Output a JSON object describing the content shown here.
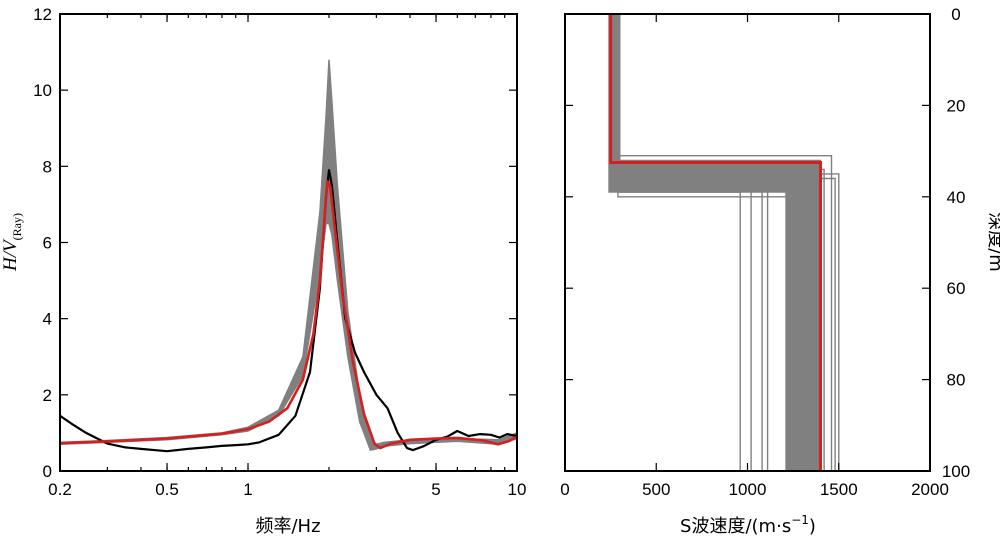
{
  "chart_data": [
    {
      "type": "line",
      "xlabel": "频率/Hz",
      "ylabel": {
        "main": "H/V",
        "sub": "(Ray)"
      },
      "xscale": "log",
      "xlim": [
        0.2,
        10
      ],
      "ylim": [
        0,
        12
      ],
      "xticks": [
        {
          "value": 0.2,
          "label": "0.2"
        },
        {
          "value": 0.5,
          "label": "0.5"
        },
        {
          "value": 1,
          "label": "1"
        },
        {
          "value": 5,
          "label": "5"
        },
        {
          "value": 10,
          "label": "10"
        }
      ],
      "yticks": [
        0,
        2,
        4,
        6,
        8,
        10,
        12
      ],
      "series": [
        {
          "role": "ensemble",
          "color": "#808080",
          "band_x": [
            0.2,
            0.3,
            0.5,
            0.8,
            1.0,
            1.3,
            1.6,
            1.85,
            1.95,
            2.0,
            2.05,
            2.15,
            2.35,
            2.6,
            2.85,
            3.0,
            3.2,
            4.0,
            6.0,
            8.5,
            10
          ],
          "band_upper": [
            0.75,
            0.8,
            0.88,
            1.0,
            1.15,
            1.6,
            3.0,
            6.8,
            9.3,
            10.8,
            9.7,
            7.5,
            4.2,
            2.0,
            0.85,
            0.7,
            0.75,
            0.82,
            0.85,
            0.82,
            1.0
          ],
          "band_lower": [
            0.7,
            0.75,
            0.82,
            0.95,
            1.05,
            1.45,
            2.5,
            5.2,
            6.5,
            6.5,
            6.2,
            5.0,
            3.0,
            1.3,
            0.55,
            0.58,
            0.65,
            0.72,
            0.78,
            0.7,
            0.85
          ]
        },
        {
          "role": "observed",
          "color": "#000000",
          "x": [
            0.2,
            0.22,
            0.25,
            0.3,
            0.35,
            0.4,
            0.5,
            0.6,
            0.7,
            0.8,
            0.9,
            1.0,
            1.1,
            1.3,
            1.5,
            1.7,
            1.85,
            1.95,
            2.0,
            2.05,
            2.15,
            2.3,
            2.5,
            2.7,
            3.0,
            3.3,
            3.6,
            3.9,
            4.1,
            4.5,
            5.0,
            5.5,
            6.0,
            6.6,
            7.3,
            8.0,
            8.6,
            9.2,
            10
          ],
          "y": [
            1.45,
            1.25,
            1.0,
            0.72,
            0.62,
            0.58,
            0.52,
            0.58,
            0.62,
            0.66,
            0.68,
            0.7,
            0.75,
            0.95,
            1.45,
            2.6,
            4.8,
            7.2,
            7.9,
            7.5,
            6.0,
            4.0,
            3.1,
            2.6,
            2.0,
            1.65,
            1.0,
            0.6,
            0.55,
            0.65,
            0.82,
            0.9,
            1.05,
            0.92,
            0.97,
            0.95,
            0.88,
            0.97,
            0.92
          ]
        },
        {
          "role": "best-fit",
          "color": "#d42020",
          "x": [
            0.2,
            0.3,
            0.5,
            0.8,
            1.0,
            1.2,
            1.4,
            1.6,
            1.75,
            1.85,
            1.92,
            1.97,
            2.02,
            2.1,
            2.25,
            2.45,
            2.7,
            2.95,
            3.1,
            3.4,
            4.0,
            5.0,
            6.0,
            7.5,
            8.5,
            9.3,
            10
          ],
          "y": [
            0.73,
            0.78,
            0.85,
            0.98,
            1.1,
            1.3,
            1.65,
            2.4,
            3.6,
            5.0,
            6.5,
            7.6,
            7.5,
            6.4,
            4.6,
            2.9,
            1.5,
            0.72,
            0.6,
            0.72,
            0.82,
            0.85,
            0.87,
            0.8,
            0.7,
            0.78,
            0.9
          ]
        }
      ]
    },
    {
      "type": "line",
      "xlabel": {
        "main": "S波速度/(m·s",
        "sup": "−1",
        "tail": ")"
      },
      "ylabel": "深度/m",
      "xlim": [
        0,
        2000
      ],
      "ylim": [
        0,
        100
      ],
      "y_inverted": true,
      "y_axis_side": "right",
      "xticks": [
        0,
        500,
        1000,
        1500,
        2000
      ],
      "yticks": [
        0,
        20,
        40,
        60,
        80,
        100
      ],
      "series": [
        {
          "role": "ensemble-outliers",
          "color": "#808080",
          "profiles": [
            {
              "v1": 290,
              "depth": 40,
              "v2": 1250
            },
            {
              "v1": 300,
              "depth": 39,
              "v2": 960
            },
            {
              "v1": 285,
              "depth": 38,
              "v2": 1020
            },
            {
              "v1": 280,
              "depth": 38.5,
              "v2": 1080
            },
            {
              "v1": 270,
              "depth": 37,
              "v2": 1110
            },
            {
              "v1": 265,
              "depth": 36,
              "v2": 1480
            },
            {
              "v1": 260,
              "depth": 35,
              "v2": 1500
            },
            {
              "v1": 255,
              "depth": 34,
              "v2": 1420
            },
            {
              "v1": 250,
              "depth": 31,
              "v2": 1460
            }
          ]
        },
        {
          "role": "ensemble-band",
          "color": "#808080",
          "v1_range": [
            240,
            300
          ],
          "depth_range": [
            32,
            39
          ],
          "v2_range": [
            1210,
            1400
          ]
        },
        {
          "role": "best-fit",
          "color": "#d42020",
          "profile": {
            "v1": 250,
            "depth": 32.5,
            "v2": 1400
          }
        }
      ]
    }
  ]
}
